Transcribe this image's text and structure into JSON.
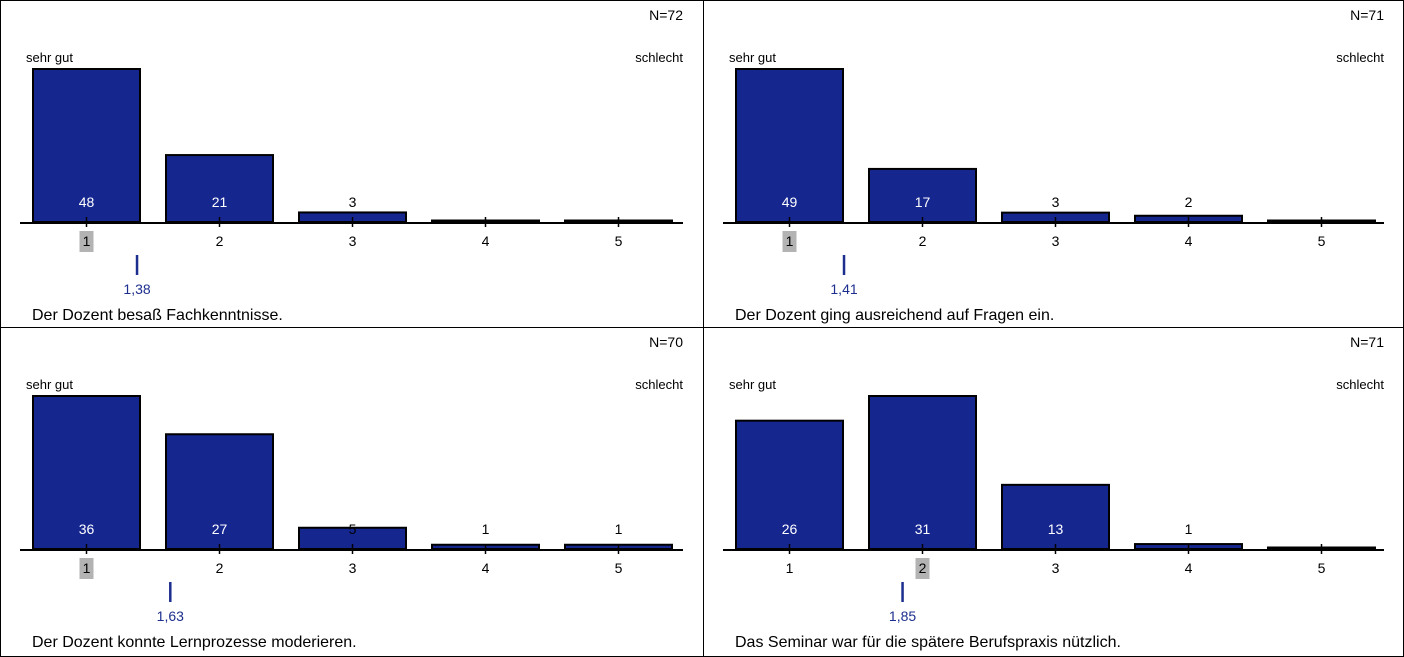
{
  "colors": {
    "bar_fill": "#15268f",
    "bar_stroke": "#000000",
    "mean_color": "#1d2f8e",
    "mode_highlight": "#b3b3b3",
    "value_label_inside": "#ffffff",
    "value_label_outside": "#000000"
  },
  "chart_data": [
    {
      "type": "bar",
      "title": "Der Dozent besaß Fachkenntnisse.",
      "n_label": "N=72",
      "left_pole": "sehr gut",
      "right_pole": "schlecht",
      "categories": [
        "1",
        "2",
        "3",
        "4",
        "5"
      ],
      "values": [
        48,
        21,
        3,
        0,
        0
      ],
      "value_labels": [
        "48",
        "21",
        "3",
        "",
        ""
      ],
      "mode_category": "1",
      "mean": 1.38,
      "mean_label": "1,38"
    },
    {
      "type": "bar",
      "title": "Der Dozent ging ausreichend auf Fragen ein.",
      "n_label": "N=71",
      "left_pole": "sehr gut",
      "right_pole": "schlecht",
      "categories": [
        "1",
        "2",
        "3",
        "4",
        "5"
      ],
      "values": [
        49,
        17,
        3,
        2,
        0
      ],
      "value_labels": [
        "49",
        "17",
        "3",
        "2",
        ""
      ],
      "mode_category": "1",
      "mean": 1.41,
      "mean_label": "1,41"
    },
    {
      "type": "bar",
      "title": "Der Dozent konnte Lernprozesse moderieren.",
      "n_label": "N=70",
      "left_pole": "sehr gut",
      "right_pole": "schlecht",
      "categories": [
        "1",
        "2",
        "3",
        "4",
        "5"
      ],
      "values": [
        36,
        27,
        5,
        1,
        1
      ],
      "value_labels": [
        "36",
        "27",
        "5",
        "1",
        "1"
      ],
      "mode_category": "1",
      "mean": 1.63,
      "mean_label": "1,63"
    },
    {
      "type": "bar",
      "title": "Das Seminar war für die spätere Berufspraxis nützlich.",
      "n_label": "N=71",
      "left_pole": "sehr gut",
      "right_pole": "schlecht",
      "categories": [
        "1",
        "2",
        "3",
        "4",
        "5"
      ],
      "values": [
        26,
        31,
        13,
        1,
        0
      ],
      "value_labels": [
        "26",
        "31",
        "13",
        "1",
        ""
      ],
      "mode_category": "2",
      "mean": 1.85,
      "mean_label": "1,85"
    }
  ]
}
